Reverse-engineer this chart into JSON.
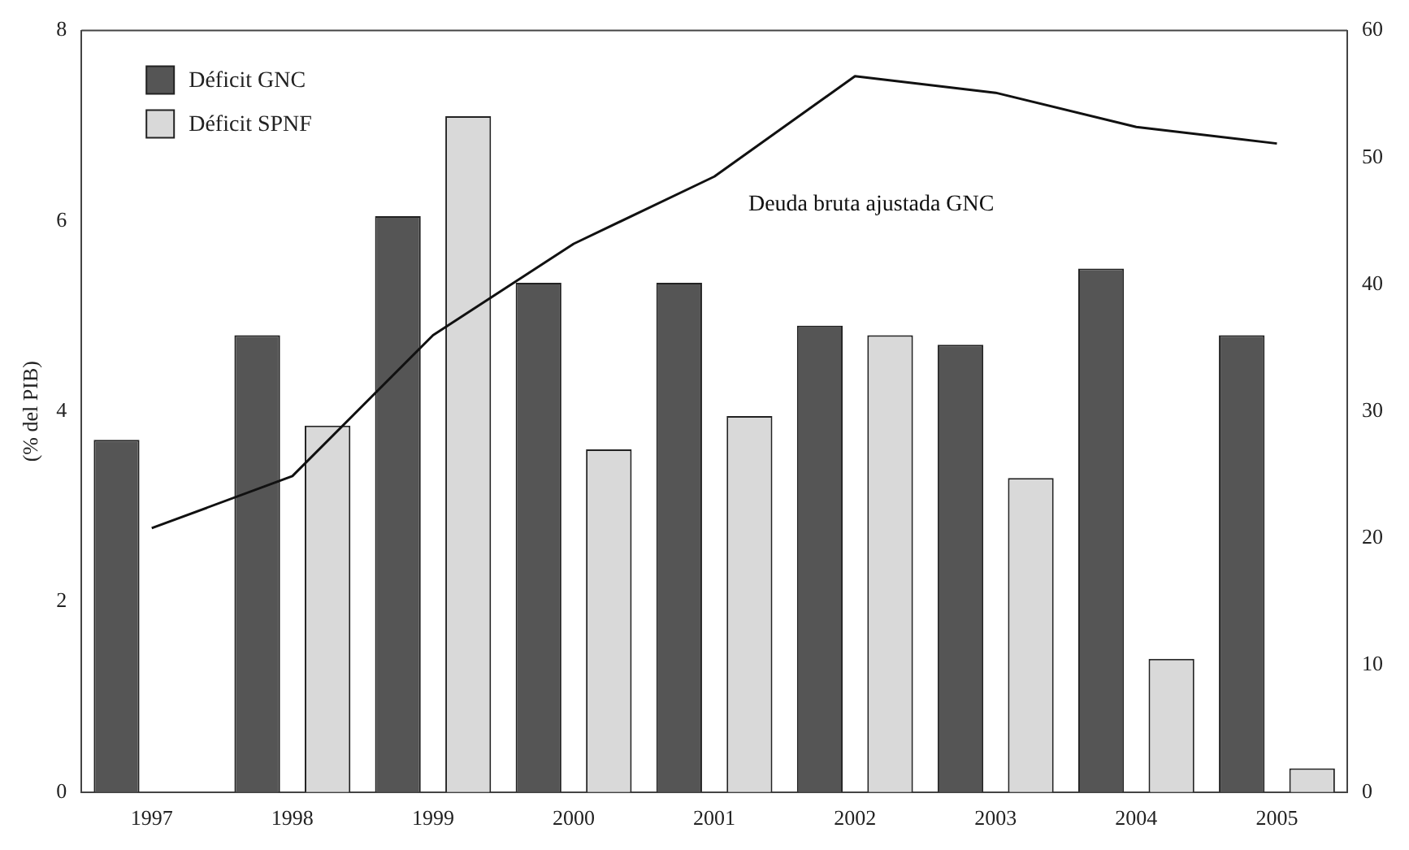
{
  "chart_data": {
    "type": "bar",
    "ylabel": "(% del PIB)",
    "categories": [
      "1997",
      "1998",
      "1999",
      "2000",
      "2001",
      "2002",
      "2003",
      "2004",
      "2005"
    ],
    "series": [
      {
        "name": "Déficit GNC",
        "color": "#555555",
        "values": [
          3.7,
          4.8,
          6.05,
          5.35,
          5.35,
          4.9,
          4.7,
          5.5,
          4.8
        ]
      },
      {
        "name": "Déficit SPNF",
        "color": "#d9d9d9",
        "values": [
          null,
          3.85,
          7.1,
          3.6,
          3.95,
          4.8,
          3.3,
          1.4,
          0.25
        ]
      },
      {
        "name": "Deuda bruta ajustada GNC",
        "type": "line",
        "axis": "y2",
        "color": "#111111",
        "values": [
          20.8,
          24.9,
          36,
          43.2,
          48.5,
          56.4,
          55.1,
          52.4,
          51.1
        ]
      }
    ],
    "ylim": [
      0,
      8
    ],
    "yticks": [
      0,
      2,
      4,
      6,
      8
    ],
    "y2lim": [
      0,
      60
    ],
    "y2ticks": [
      0,
      10,
      20,
      30,
      40,
      50,
      60
    ],
    "grid": false,
    "legend": "top left",
    "marker": "none",
    "line_style": "solid"
  }
}
